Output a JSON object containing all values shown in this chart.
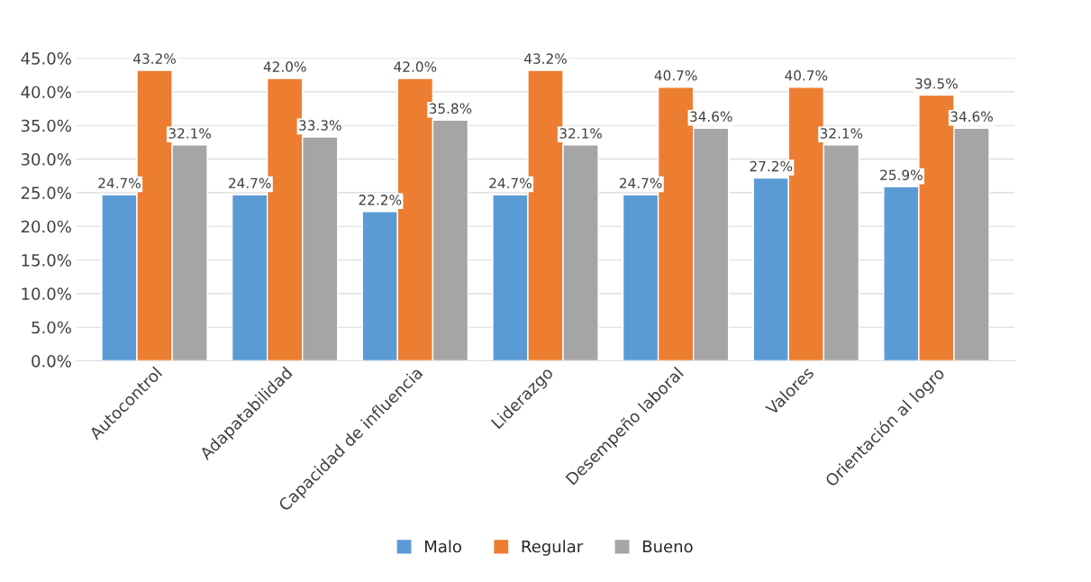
{
  "chart_data": {
    "type": "bar",
    "categories": [
      "Autocontrol",
      "Adapatabilidad",
      "Capacidad de influencia",
      "Liderazgo",
      "Desempeño laboral",
      "Valores",
      "Orientación al logro"
    ],
    "series": [
      {
        "name": "Malo",
        "color": "#5b9bd5",
        "values": [
          24.7,
          24.7,
          22.2,
          24.7,
          24.7,
          27.2,
          25.9
        ],
        "value_labels": [
          "24.7%",
          "24.7%",
          "22.2%",
          "24.7%",
          "24.7%",
          "27.2%",
          "25.9%"
        ]
      },
      {
        "name": "Regular",
        "color": "#ed7d31",
        "values": [
          43.2,
          42.0,
          42.0,
          43.2,
          40.7,
          40.7,
          39.5
        ],
        "value_labels": [
          "43.2%",
          "42.0%",
          "42.0%",
          "43.2%",
          "40.7%",
          "40.7%",
          "39.5%"
        ]
      },
      {
        "name": "Bueno",
        "color": "#a5a5a5",
        "values": [
          32.1,
          33.3,
          35.8,
          32.1,
          34.6,
          32.1,
          34.6
        ],
        "value_labels": [
          "32.1%",
          "33.3%",
          "35.8%",
          "32.1%",
          "34.6%",
          "32.1%",
          "34.6%"
        ]
      }
    ],
    "ylim": [
      0,
      45
    ],
    "yticks": [
      {
        "value": 0,
        "label": "0.0%"
      },
      {
        "value": 5,
        "label": "5.0%"
      },
      {
        "value": 10,
        "label": "10.0%"
      },
      {
        "value": 15,
        "label": "15.0%"
      },
      {
        "value": 20,
        "label": "20.0%"
      },
      {
        "value": 25,
        "label": "25.0%"
      },
      {
        "value": 30,
        "label": "30.0%"
      },
      {
        "value": 35,
        "label": "35.0%"
      },
      {
        "value": 40,
        "label": "40.0%"
      },
      {
        "value": 45,
        "label": "45.0%"
      }
    ],
    "grid": "y",
    "legend": "bottom"
  }
}
